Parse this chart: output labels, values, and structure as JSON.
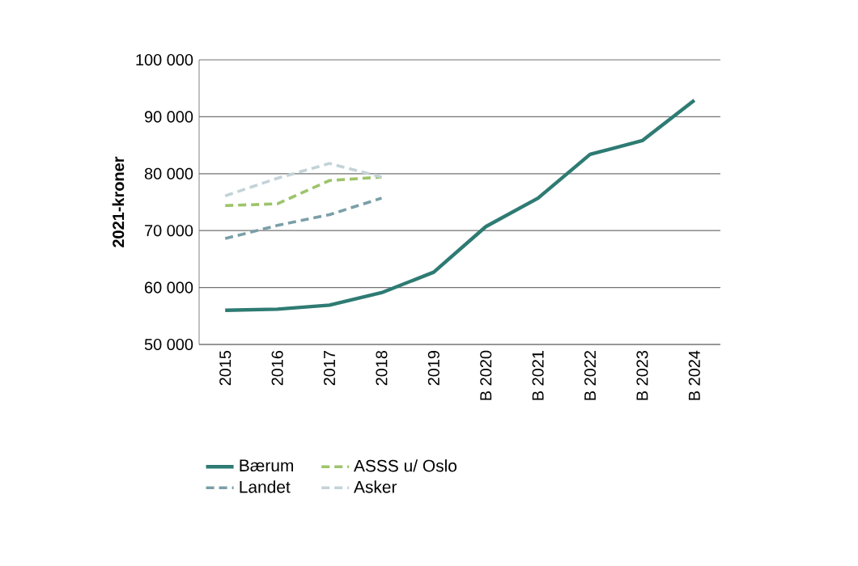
{
  "chart_data": {
    "type": "line",
    "ylabel": "2021-kroner",
    "categories": [
      "2015",
      "2016",
      "2017",
      "2018",
      "2019",
      "B 2020",
      "B 2021",
      "B 2022",
      "B 2023",
      "B 2024"
    ],
    "series": [
      {
        "name": "Bærum",
        "color": "#2e7b73",
        "line_style": "solid",
        "values": [
          56000,
          56200,
          56900,
          59100,
          62700,
          70700,
          75700,
          83400,
          85800,
          92900
        ]
      },
      {
        "name": "ASSS u/ Oslo",
        "color": "#9dc46a",
        "line_style": "dashed",
        "values": [
          74400,
          74700,
          78800,
          79400,
          null,
          null,
          null,
          null,
          null,
          null
        ]
      },
      {
        "name": "Landet",
        "color": "#7a9fa8",
        "line_style": "dashed",
        "values": [
          68600,
          70900,
          72800,
          75700,
          null,
          null,
          null,
          null,
          null,
          null
        ]
      },
      {
        "name": "Asker",
        "color": "#c3d3d8",
        "line_style": "dashed",
        "values": [
          76100,
          79200,
          81800,
          79400,
          null,
          null,
          null,
          null,
          null,
          null
        ]
      }
    ],
    "ylim": [
      50000,
      100000
    ],
    "yticks": [
      {
        "value": 50000,
        "label": "50 000"
      },
      {
        "value": 60000,
        "label": "60 000"
      },
      {
        "value": 70000,
        "label": "70 000"
      },
      {
        "value": 80000,
        "label": "80 000"
      },
      {
        "value": 90000,
        "label": "90 000"
      },
      {
        "value": 100000,
        "label": "100 000"
      }
    ],
    "grid": "y",
    "legend": "bottom"
  }
}
